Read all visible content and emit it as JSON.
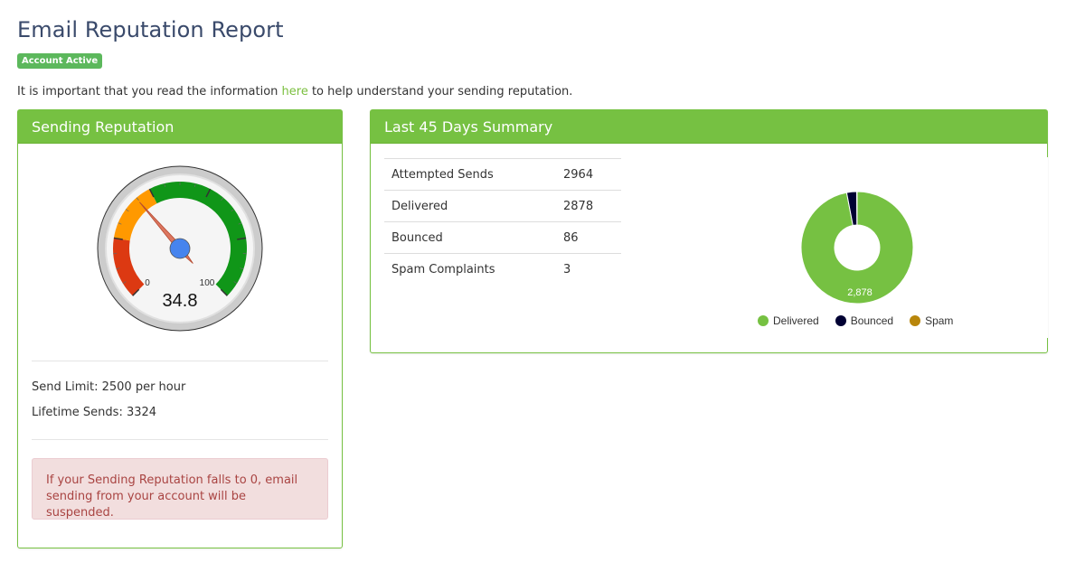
{
  "page": {
    "title": "Email Reputation Report",
    "badge": "Account Active",
    "intro_before": "It is important that you read the information ",
    "intro_link": "here",
    "intro_after": " to help understand your sending reputation."
  },
  "reputation": {
    "heading": "Sending Reputation",
    "gauge": {
      "min": 0,
      "max": 100,
      "value": 34.8,
      "value_label": "34.8",
      "min_label": "0",
      "max_label": "100",
      "bands": [
        {
          "from": 0,
          "to": 20,
          "color": "#dc3912"
        },
        {
          "from": 20,
          "to": 40,
          "color": "#ff9900"
        },
        {
          "from": 40,
          "to": 100,
          "color": "#109618"
        }
      ]
    },
    "send_limit": "Send Limit: 2500 per hour",
    "lifetime_sends": "Lifetime Sends: 3324",
    "alert": "If your Sending Reputation falls to 0, email sending from your account will be suspended."
  },
  "summary": {
    "heading": "Last 45 Days Summary",
    "rows": [
      {
        "label": "Attempted Sends",
        "value": "2964"
      },
      {
        "label": "Delivered",
        "value": "2878"
      },
      {
        "label": "Bounced",
        "value": "86"
      },
      {
        "label": "Spam Complaints",
        "value": "3"
      }
    ]
  },
  "chart_data": {
    "type": "pie",
    "categories": [
      "Delivered",
      "Bounced",
      "Spam"
    ],
    "values": [
      2878,
      86,
      3
    ],
    "colors": [
      "#76c142",
      "#000033",
      "#b8860b"
    ],
    "data_labels": [
      "2,878",
      "",
      ""
    ],
    "legend": "bottom"
  }
}
